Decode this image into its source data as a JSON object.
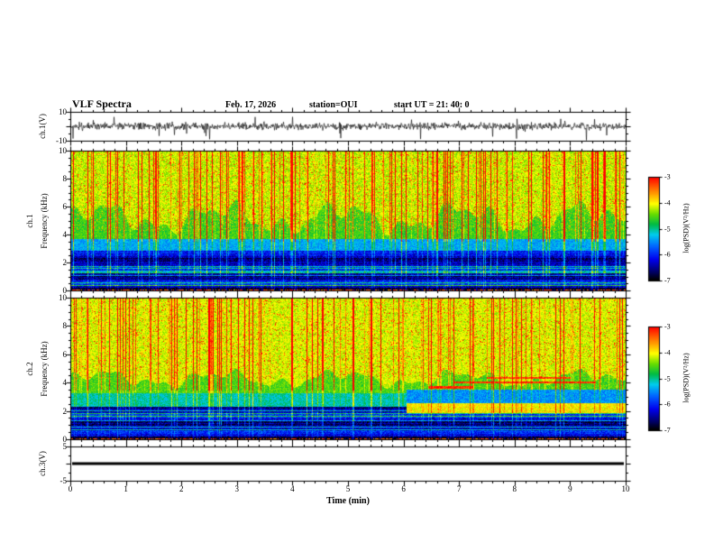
{
  "header": {
    "title": "VLF Spectra",
    "date": "Feb. 17, 2026",
    "station": "station=OUI",
    "start_ut": "start UT =  21: 40: 0"
  },
  "xaxis": {
    "label": "Time (min)",
    "ticks": [
      0,
      1,
      2,
      3,
      4,
      5,
      6,
      7,
      8,
      9,
      10
    ],
    "range": [
      0,
      10
    ]
  },
  "colorbar": {
    "label": "log(PSD)(V²/Hz)",
    "ticks": [
      -3,
      -4,
      -5,
      -6,
      -7
    ],
    "range": [
      -7,
      -3
    ]
  },
  "colormap_stops": [
    [
      0.0,
      "#000000"
    ],
    [
      0.08,
      "#000066"
    ],
    [
      0.2,
      "#0000ee"
    ],
    [
      0.33,
      "#0066ff"
    ],
    [
      0.44,
      "#00ccee"
    ],
    [
      0.54,
      "#00bb44"
    ],
    [
      0.64,
      "#66dd00"
    ],
    [
      0.74,
      "#ffff00"
    ],
    [
      0.86,
      "#ff8800"
    ],
    [
      1.0,
      "#ff0000"
    ]
  ],
  "chart_data": [
    {
      "type": "line",
      "name": "ch.1 waveform",
      "ylabel": "ch.1(V)",
      "ylim": [
        -10,
        10
      ],
      "ytick_labels": [
        "10",
        "-10"
      ],
      "description": "broadband noise about 0 V, ±2 V envelope with intermittent spikes to ±8 V",
      "signal": {
        "noise_amplitude_v": 1.5,
        "spike_amplitude_v": 6.5,
        "spike_fraction": 0.025
      }
    },
    {
      "type": "heatmap",
      "name": "ch.1 spectrogram",
      "channel": "ch.1",
      "ylabel": "Frequency (kHz)",
      "ylim": [
        0,
        10
      ],
      "yticks": [
        0,
        2,
        4,
        6,
        8,
        10
      ],
      "zlim": [
        -7,
        -3
      ],
      "edge_waviness_khz": 0.9,
      "bands": [
        {
          "f_khz": [
            0,
            0.25
          ],
          "log_psd": -6.9,
          "texture": "near-black floor with dotted red line at 0 kHz"
        },
        {
          "f_khz": [
            0.25,
            2.9
          ],
          "log_psd": -6.35,
          "texture": "dark blue with horizontal banding and bright stripes"
        },
        {
          "f_khz": [
            2.9,
            3.7
          ],
          "log_psd": -5.4,
          "texture": "cyan transition band"
        },
        {
          "f_khz": [
            3.7,
            5.2
          ],
          "log_psd": -4.6,
          "texture": "green band with wavy upper edge"
        },
        {
          "f_khz": [
            5.2,
            10
          ],
          "log_psd": -4.2,
          "texture": "yellow-green mottle with red speckle"
        }
      ],
      "bursts": {
        "column_fraction": 0.24,
        "gain": 2.4,
        "description": "frequent vertical red burst columns spanning 3.5-10 kHz, faint continuation to 0 kHz"
      }
    },
    {
      "type": "heatmap",
      "name": "ch.2 spectrogram",
      "channel": "ch.2",
      "ylabel": "Frequency (kHz)",
      "ylim": [
        0,
        10
      ],
      "yticks": [
        0,
        2,
        4,
        6,
        8,
        10
      ],
      "zlim": [
        -7,
        -3
      ],
      "edge_waviness_khz": 0.5,
      "bands": [
        {
          "f_khz": [
            0,
            0.25
          ],
          "log_psd": -6.9,
          "texture": "near-black floor with dotted red line at 0 kHz"
        },
        {
          "f_khz": [
            0.25,
            2.3
          ],
          "log_psd": -6.35,
          "texture": "dark blue with horizontal banding and bright stripes"
        },
        {
          "f_khz": [
            2.3,
            3.3
          ],
          "log_psd": -5.1,
          "texture": "cyan transition band"
        },
        {
          "f_khz": [
            3.3,
            4.3
          ],
          "log_psd": -4.55,
          "texture": "green band"
        },
        {
          "f_khz": [
            4.3,
            10
          ],
          "log_psd": -4.15,
          "texture": "yellow-green mottle with red speckle"
        }
      ],
      "bursts": {
        "column_fraction": 0.2,
        "gain": 2.2
      },
      "event_after_min": 6.05,
      "event_bands": [
        {
          "f_khz": [
            1.9,
            2.6
          ],
          "log_psd": -4.0,
          "texture": "bright yellow band after t=6 min"
        },
        {
          "f_khz": [
            2.6,
            3.55
          ],
          "log_psd": -5.5,
          "texture": "blue/cyan depression after t=6 min"
        }
      ],
      "event_lines": [
        {
          "f_khz": 3.7,
          "t_min": [
            6.45,
            7.25
          ],
          "log_psd": -3.2
        },
        {
          "f_khz": 4.05,
          "t_min": [
            6.9,
            9.45
          ],
          "log_psd": -3.2
        },
        {
          "f_khz": 4.35,
          "t_min": [
            7.5,
            9.0
          ],
          "log_psd": -3.3
        }
      ]
    },
    {
      "type": "line",
      "name": "ch.3 waveform",
      "ylabel": "ch.3(V)",
      "ylim": [
        -5,
        5
      ],
      "ytick_labels": [
        "5",
        "-5"
      ],
      "description": "flat constant trace at 0 V",
      "signal": {
        "constant_v": 0
      }
    }
  ]
}
